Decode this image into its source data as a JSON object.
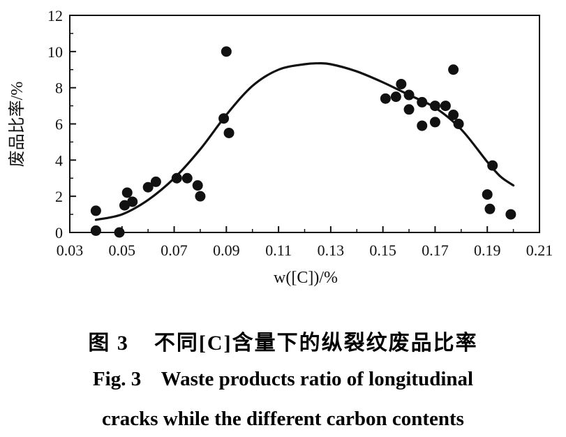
{
  "chart_data": {
    "type": "scatter",
    "xlabel": "w([C])/%",
    "ylabel": "废品比率/%",
    "xlim": [
      0.03,
      0.21
    ],
    "ylim": [
      0,
      12
    ],
    "xticks": [
      "0.03",
      "0.05",
      "0.07",
      "0.09",
      "0.11",
      "0.13",
      "0.15",
      "0.17",
      "0.19",
      "0.21"
    ],
    "yticks": [
      "0",
      "2",
      "4",
      "6",
      "8",
      "10",
      "12"
    ],
    "grid": false,
    "legend": "none",
    "colors": {
      "points": "#111111",
      "curve": "#111111",
      "axes": "#111111"
    },
    "points": [
      {
        "x": 0.04,
        "y": 1.2
      },
      {
        "x": 0.04,
        "y": 0.1
      },
      {
        "x": 0.049,
        "y": 0.0
      },
      {
        "x": 0.051,
        "y": 1.5
      },
      {
        "x": 0.052,
        "y": 2.2
      },
      {
        "x": 0.054,
        "y": 1.7
      },
      {
        "x": 0.06,
        "y": 2.5
      },
      {
        "x": 0.063,
        "y": 2.8
      },
      {
        "x": 0.071,
        "y": 3.0
      },
      {
        "x": 0.075,
        "y": 3.0
      },
      {
        "x": 0.079,
        "y": 2.6
      },
      {
        "x": 0.08,
        "y": 2.0
      },
      {
        "x": 0.089,
        "y": 6.3
      },
      {
        "x": 0.09,
        "y": 10.0
      },
      {
        "x": 0.091,
        "y": 5.5
      },
      {
        "x": 0.151,
        "y": 7.4
      },
      {
        "x": 0.155,
        "y": 7.5
      },
      {
        "x": 0.157,
        "y": 8.2
      },
      {
        "x": 0.16,
        "y": 6.8
      },
      {
        "x": 0.16,
        "y": 7.6
      },
      {
        "x": 0.165,
        "y": 7.2
      },
      {
        "x": 0.165,
        "y": 5.9
      },
      {
        "x": 0.17,
        "y": 7.0
      },
      {
        "x": 0.17,
        "y": 6.1
      },
      {
        "x": 0.174,
        "y": 7.0
      },
      {
        "x": 0.177,
        "y": 9.0
      },
      {
        "x": 0.177,
        "y": 6.5
      },
      {
        "x": 0.179,
        "y": 6.0
      },
      {
        "x": 0.19,
        "y": 2.1
      },
      {
        "x": 0.191,
        "y": 1.3
      },
      {
        "x": 0.192,
        "y": 3.7
      },
      {
        "x": 0.199,
        "y": 1.0
      }
    ],
    "fit_curve": [
      {
        "x": 0.04,
        "y": 0.7
      },
      {
        "x": 0.05,
        "y": 1.0
      },
      {
        "x": 0.06,
        "y": 1.8
      },
      {
        "x": 0.07,
        "y": 3.0
      },
      {
        "x": 0.08,
        "y": 4.6
      },
      {
        "x": 0.09,
        "y": 6.5
      },
      {
        "x": 0.1,
        "y": 8.1
      },
      {
        "x": 0.11,
        "y": 9.0
      },
      {
        "x": 0.12,
        "y": 9.3
      },
      {
        "x": 0.125,
        "y": 9.35
      },
      {
        "x": 0.13,
        "y": 9.3
      },
      {
        "x": 0.14,
        "y": 8.9
      },
      {
        "x": 0.15,
        "y": 8.3
      },
      {
        "x": 0.16,
        "y": 7.6
      },
      {
        "x": 0.17,
        "y": 6.9
      },
      {
        "x": 0.18,
        "y": 5.7
      },
      {
        "x": 0.19,
        "y": 3.9
      },
      {
        "x": 0.195,
        "y": 3.1
      },
      {
        "x": 0.2,
        "y": 2.6
      }
    ]
  },
  "caption": {
    "cn_num": "图 3",
    "cn_text": "不同[C]含量下的纵裂纹废品比率",
    "en_line1": "Fig. 3    Waste products ratio of longitudinal",
    "en_line2": "cracks while the different carbon contents"
  }
}
